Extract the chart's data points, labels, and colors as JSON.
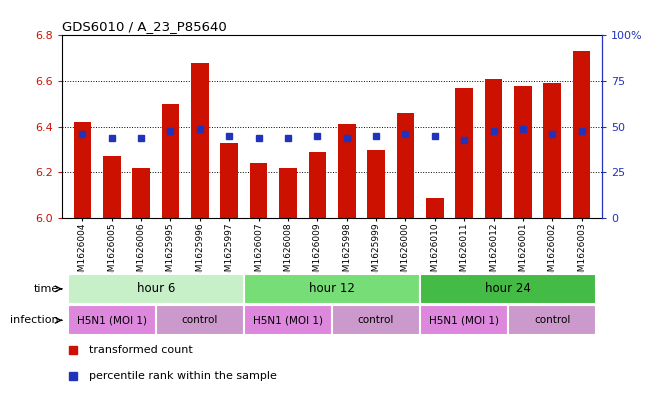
{
  "title": "GDS6010 / A_23_P85640",
  "samples": [
    "GSM1626004",
    "GSM1626005",
    "GSM1626006",
    "GSM1625995",
    "GSM1625996",
    "GSM1625997",
    "GSM1626007",
    "GSM1626008",
    "GSM1626009",
    "GSM1625998",
    "GSM1625999",
    "GSM1626000",
    "GSM1626010",
    "GSM1626011",
    "GSM1626012",
    "GSM1626001",
    "GSM1626002",
    "GSM1626003"
  ],
  "bar_values": [
    6.42,
    6.27,
    6.22,
    6.5,
    6.68,
    6.33,
    6.24,
    6.22,
    6.29,
    6.41,
    6.3,
    6.46,
    6.09,
    6.57,
    6.61,
    6.58,
    6.59,
    6.73
  ],
  "percentile_values": [
    6.37,
    6.35,
    6.35,
    6.38,
    6.39,
    6.36,
    6.35,
    6.35,
    6.36,
    6.35,
    6.36,
    6.37,
    6.36,
    6.34,
    6.38,
    6.39,
    6.37,
    6.38
  ],
  "ylim": [
    6.0,
    6.8
  ],
  "yticks": [
    6.0,
    6.2,
    6.4,
    6.6,
    6.8
  ],
  "right_yticks": [
    0,
    25,
    50,
    75,
    100
  ],
  "right_ytick_labels": [
    "0",
    "25",
    "50",
    "75",
    "100%"
  ],
  "bar_color": "#cc1100",
  "blue_color": "#2233bb",
  "time_groups": [
    {
      "label": "hour 6",
      "start": 0,
      "end": 6,
      "color": "#c8f0c8"
    },
    {
      "label": "hour 12",
      "start": 6,
      "end": 12,
      "color": "#77dd77"
    },
    {
      "label": "hour 24",
      "start": 12,
      "end": 18,
      "color": "#44bb44"
    }
  ],
  "infection_groups": [
    {
      "label": "H5N1 (MOI 1)",
      "start": 0,
      "end": 3,
      "color": "#dd88dd"
    },
    {
      "label": "control",
      "start": 3,
      "end": 6,
      "color": "#cc88cc"
    },
    {
      "label": "H5N1 (MOI 1)",
      "start": 6,
      "end": 9,
      "color": "#dd88dd"
    },
    {
      "label": "control",
      "start": 9,
      "end": 12,
      "color": "#cc88cc"
    },
    {
      "label": "H5N1 (MOI 1)",
      "start": 12,
      "end": 15,
      "color": "#dd88dd"
    },
    {
      "label": "control",
      "start": 15,
      "end": 18,
      "color": "#cc88cc"
    }
  ],
  "label_time": "time",
  "label_infection": "infection",
  "legend_bar": "transformed count",
  "legend_pct": "percentile rank within the sample",
  "bg_color": "#ffffff"
}
